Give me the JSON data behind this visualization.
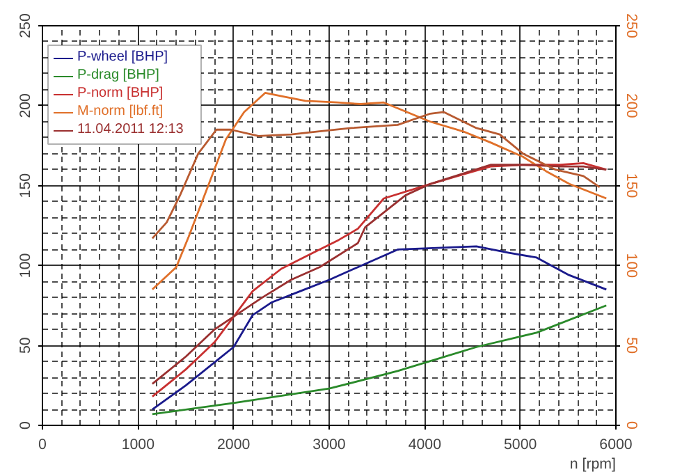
{
  "chart_data": {
    "type": "line",
    "xlabel": "n [rpm]",
    "xlim": [
      0,
      6000
    ],
    "xticks": [
      0,
      1000,
      2000,
      3000,
      4000,
      5000,
      6000
    ],
    "ylim": [
      0,
      250
    ],
    "yticks": [
      0,
      50,
      100,
      150,
      200,
      250
    ],
    "y2lim": [
      0,
      250
    ],
    "y2ticks": [
      0,
      50,
      100,
      150,
      200,
      250
    ],
    "grid": true,
    "legend": "top left",
    "marker": "none",
    "line_style": "solid",
    "series": [
      {
        "name": "P-wheel [BHP]",
        "color": "#1a1a8c",
        "x": [
          1150,
          1500,
          2000,
          2200,
          2400,
          2700,
          3000,
          3300,
          3717,
          4540,
          4880,
          5170,
          5510,
          5900
        ],
        "values": [
          10,
          25,
          49,
          69,
          77,
          84,
          91,
          99,
          110,
          112,
          108,
          105,
          94,
          85
        ]
      },
      {
        "name": "P-drag [BHP]",
        "color": "#2a8a2a",
        "x": [
          1150,
          2000,
          3000,
          3717,
          4540,
          5170,
          5900
        ],
        "values": [
          7,
          14,
          23,
          34,
          49,
          58,
          75
        ]
      },
      {
        "name": "P-norm [BHP]",
        "color": "#c83030",
        "x": [
          1150,
          1500,
          1800,
          2000,
          2200,
          2500,
          2800,
          3100,
          3300,
          3572,
          4057,
          4688,
          5028,
          5417,
          5660,
          5900
        ],
        "values": [
          18,
          35,
          52,
          68,
          84,
          98,
          107,
          116,
          123,
          142,
          151,
          162,
          163,
          163,
          164,
          160
        ]
      },
      {
        "name": "M-norm [lbf.ft]",
        "color": "#e0702a",
        "axis": "y2",
        "x": [
          1150,
          1400,
          1530,
          1920,
          2110,
          2330,
          2500,
          2750,
          3086,
          3330,
          3570,
          3814,
          4057,
          4397,
          4688,
          5028,
          5270,
          5514,
          5900
        ],
        "values": [
          85,
          99,
          118,
          179,
          196,
          208,
          206,
          203,
          202,
          201,
          202,
          196,
          190,
          184,
          177,
          168,
          159,
          151,
          142
        ]
      },
      {
        "name": "11.04.2011 12:13",
        "color": "#9a3030",
        "x": [
          1150,
          1500,
          1800,
          2000,
          2300,
          2600,
          2900,
          3300,
          3377,
          3800,
          4057,
          4688,
          5028,
          5417,
          5660,
          5900
        ],
        "values": [
          26,
          43,
          60,
          68,
          80,
          91,
          99,
          114,
          124,
          144,
          151,
          163,
          163,
          162,
          162,
          160
        ]
      },
      {
        "color": "#b85a30",
        "axis": "y2",
        "x": [
          1150,
          1300,
          1440,
          1630,
          1820,
          1970,
          2260,
          2600,
          2900,
          3230,
          3717,
          4057,
          4200,
          4540,
          4785,
          5028,
          5368,
          5660,
          5830
        ],
        "values": [
          117,
          127,
          144,
          170,
          185,
          185,
          181,
          182,
          184,
          186,
          188,
          195,
          196,
          186,
          182,
          170,
          160,
          156,
          149
        ]
      }
    ]
  }
}
